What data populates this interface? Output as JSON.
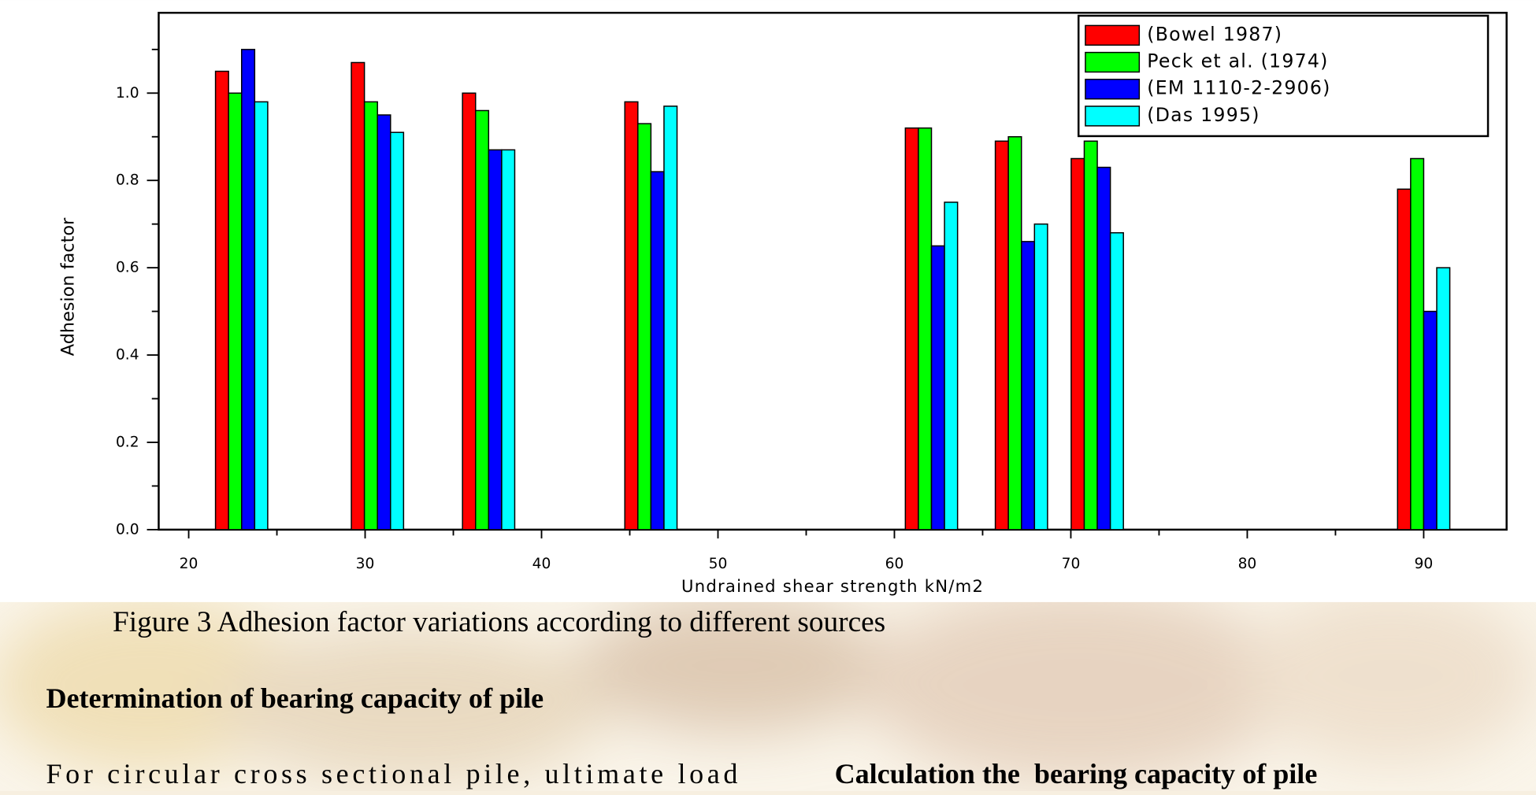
{
  "chart_data": {
    "type": "bar",
    "xlabel": "Undrained shear strength kN/m2",
    "ylabel": "Adhesion factor",
    "x": [
      23,
      30.7,
      37,
      46.2,
      62.1,
      67.2,
      71.5,
      90
    ],
    "series": [
      {
        "name": "(Bowel 1987)",
        "color": "#ff0000",
        "values": [
          1.05,
          1.07,
          1.0,
          0.98,
          0.92,
          0.89,
          0.85,
          0.78
        ]
      },
      {
        "name": "Peck et al. (1974)",
        "color": "#00ff00",
        "values": [
          1.0,
          0.98,
          0.96,
          0.93,
          0.92,
          0.9,
          0.89,
          0.85
        ]
      },
      {
        "name": "(EM 1110-2-2906)",
        "color": "#0000ff",
        "values": [
          1.1,
          0.95,
          0.87,
          0.82,
          0.65,
          0.66,
          0.83,
          0.5
        ]
      },
      {
        "name": "(Das 1995)",
        "color": "#00ffff",
        "values": [
          0.98,
          0.91,
          0.87,
          0.97,
          0.75,
          0.7,
          0.68,
          0.6
        ]
      }
    ],
    "xlim": [
      18.3,
      94.7
    ],
    "ylim": [
      0,
      1.184
    ],
    "xticks": [
      20,
      30,
      40,
      50,
      60,
      70,
      80,
      90
    ],
    "minor_xticks": [
      25,
      35,
      45,
      55,
      65,
      75,
      85
    ],
    "yticks": [
      {
        "value": 0,
        "label": "0.0"
      },
      {
        "value": 0.2,
        "label": "0.2"
      },
      {
        "value": 0.4,
        "label": "0.4"
      },
      {
        "value": 0.6,
        "label": "0.6"
      },
      {
        "value": 0.8,
        "label": "0.8"
      },
      {
        "value": 1,
        "label": "1.0"
      }
    ],
    "minor_yticks": [
      0.1,
      0.3,
      0.5,
      0.7,
      0.9,
      1.1
    ],
    "legend": "upper right",
    "grid": false
  },
  "caption": "Figure 3 Adhesion factor variations according to different sources",
  "heading": "Determination of bearing capacity of pile",
  "paragraph": "For circular cross sectional pile, ultimate load",
  "right_heading": "Calculation the  bearing capacity of pile"
}
